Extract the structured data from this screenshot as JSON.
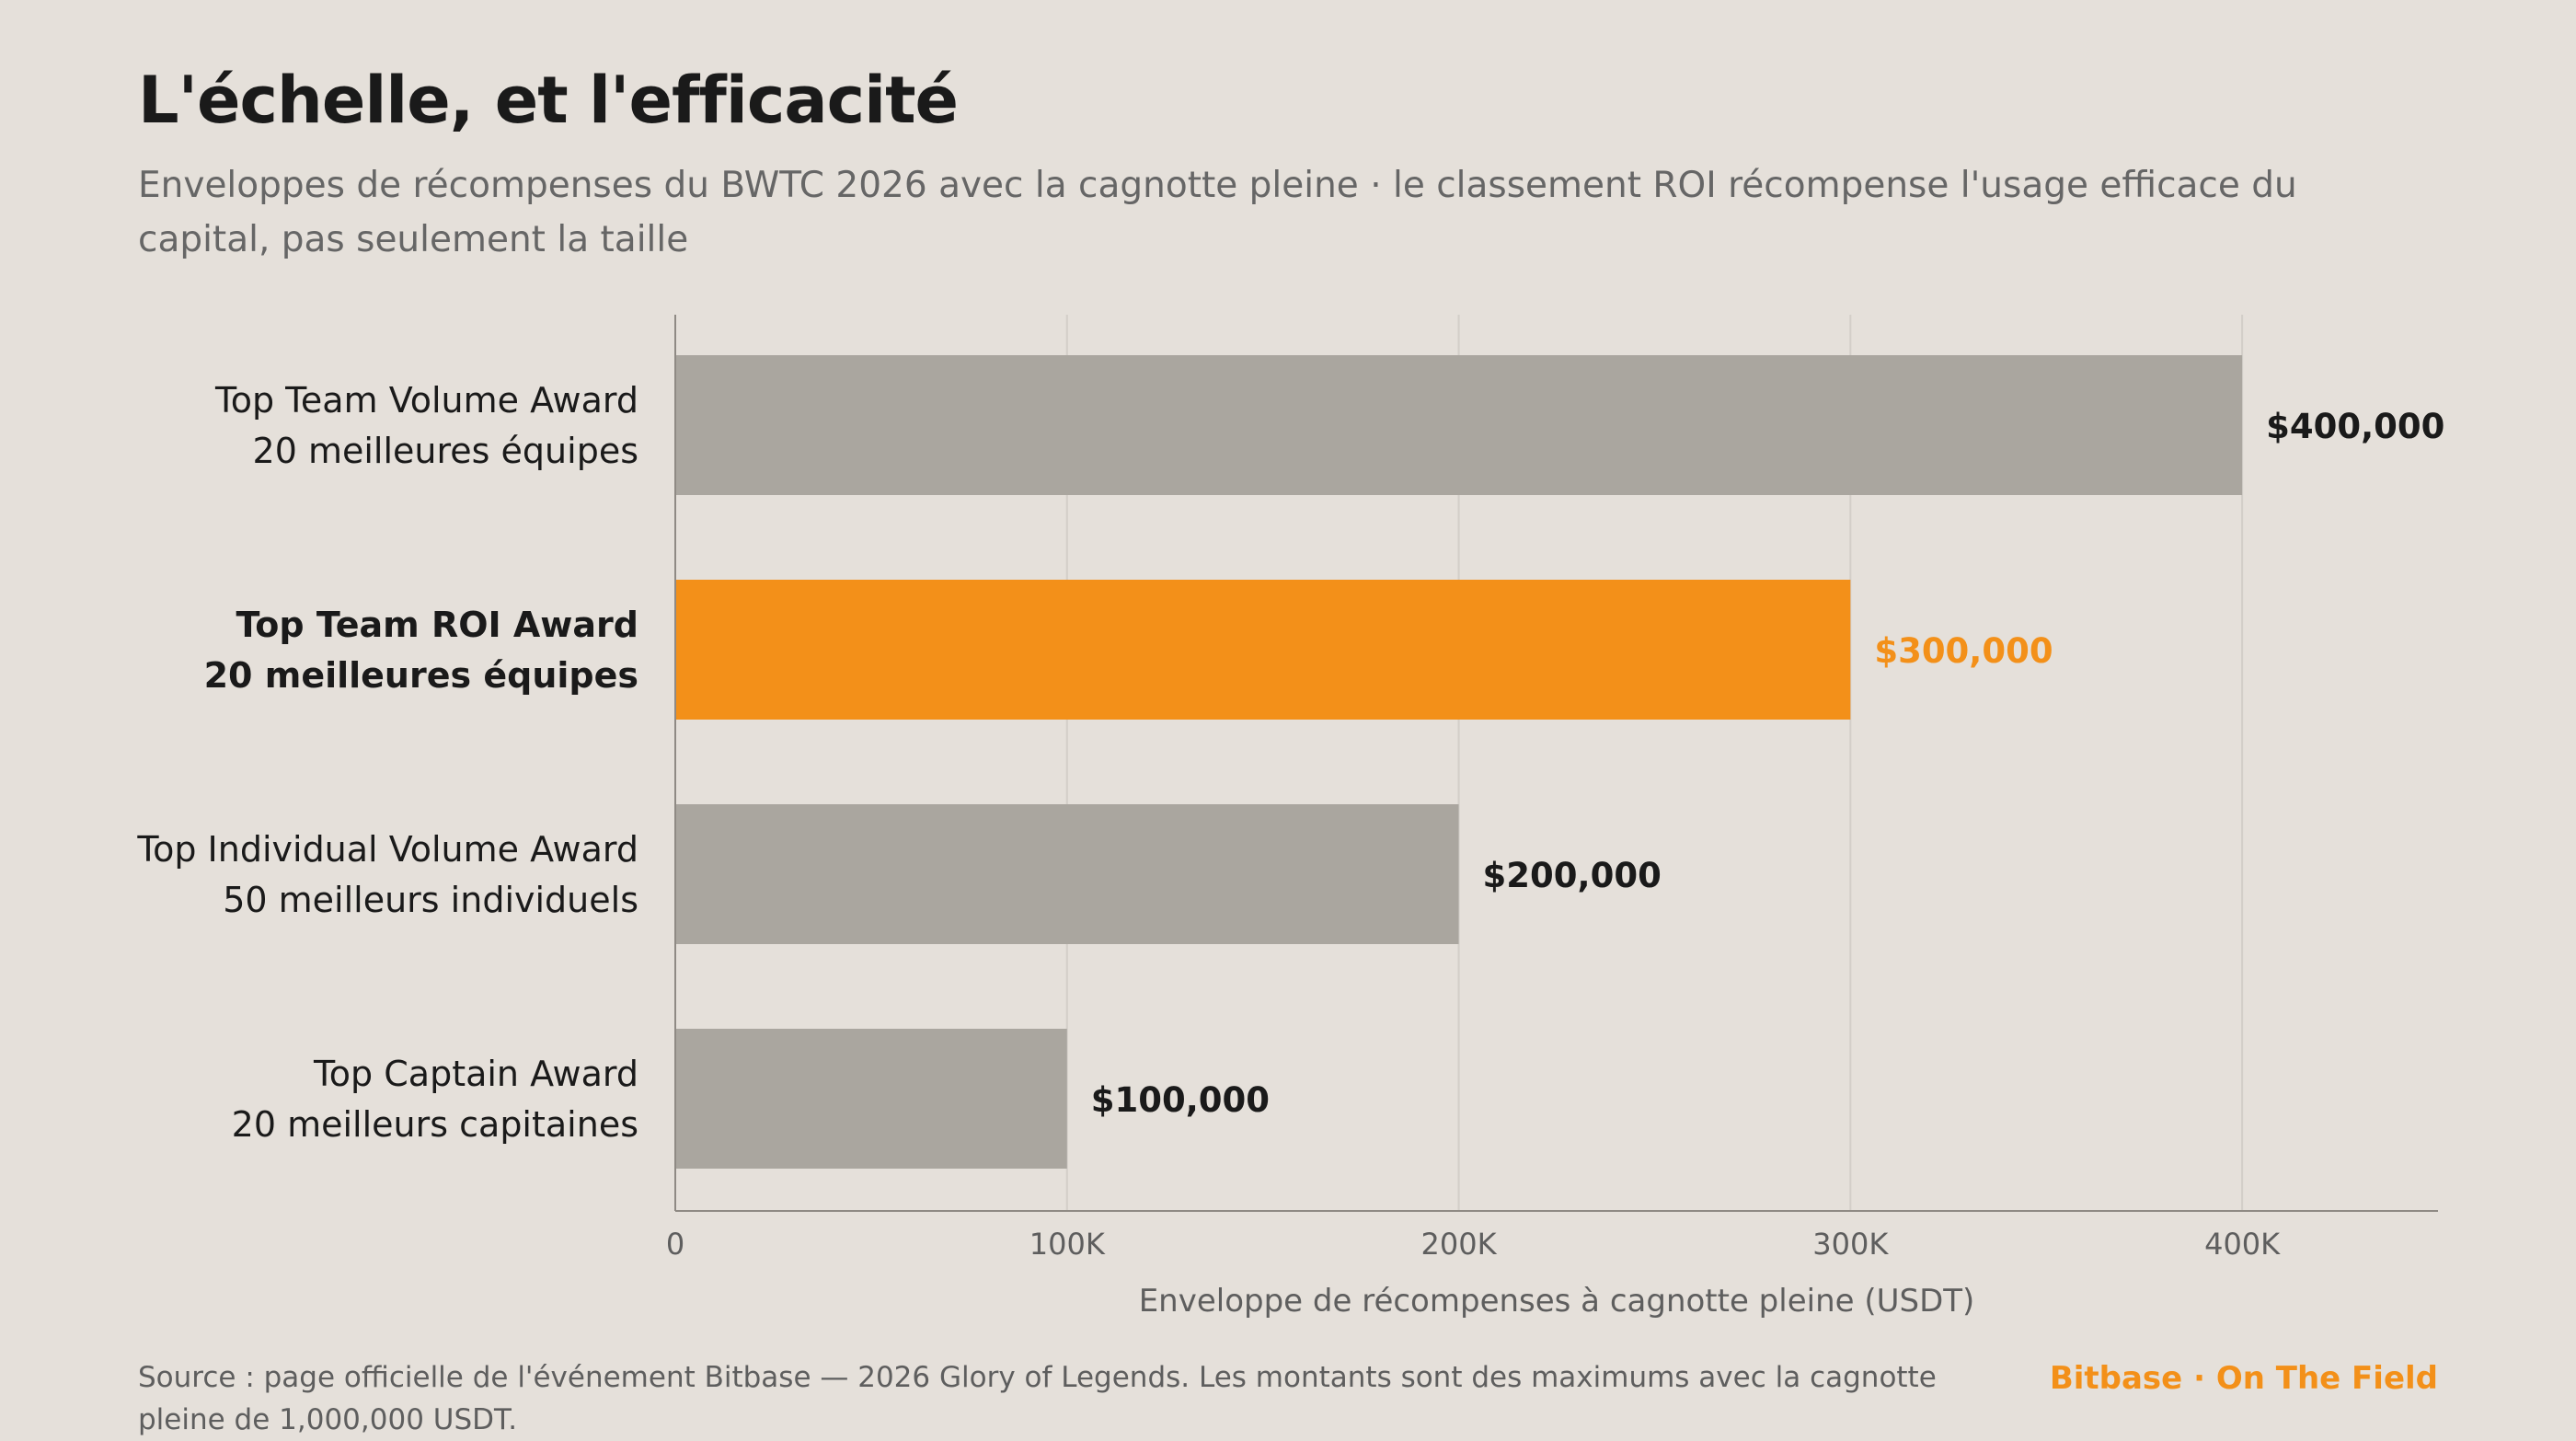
{
  "title": "L'échelle, et l'efficacité",
  "subtitle": "Enveloppes de récompenses du BWTC 2026 avec la cagnotte pleine · le classement ROI récompense l'usage efficace du capital, pas seulement la taille",
  "footer": {
    "source": "Source : page officielle de l'événement Bitbase — 2026 Glory of Legends. Les montants sont des maximums avec la cagnotte pleine de 1,000,000 USDT.",
    "brand": "Bitbase · On The Field"
  },
  "colors": {
    "bar_default": "#AAA69F",
    "bar_highlight": "#F39019",
    "background": "#E5E0DA"
  },
  "chart_data": {
    "type": "bar",
    "orientation": "horizontal",
    "title": "L'échelle, et l'efficacité",
    "xlabel": "Enveloppe de récompenses à cagnotte pleine (USDT)",
    "xlim": [
      0,
      450000
    ],
    "x_ticks": [
      0,
      100000,
      200000,
      300000,
      400000
    ],
    "x_tick_labels": [
      "0",
      "100K",
      "200K",
      "300K",
      "400K"
    ],
    "grid": true,
    "categories": [
      {
        "name": "Top Team Volume Award",
        "sub": "20 meilleures équipes",
        "value": 400000,
        "value_label": "$400,000",
        "highlight": false
      },
      {
        "name": "Top Team ROI Award",
        "sub": "20 meilleures équipes",
        "value": 300000,
        "value_label": "$300,000",
        "highlight": true
      },
      {
        "name": "Top Individual Volume Award",
        "sub": "50 meilleurs individuels",
        "value": 200000,
        "value_label": "$200,000",
        "highlight": false
      },
      {
        "name": "Top Captain Award",
        "sub": "20 meilleurs capitaines",
        "value": 100000,
        "value_label": "$100,000",
        "highlight": false
      }
    ]
  }
}
